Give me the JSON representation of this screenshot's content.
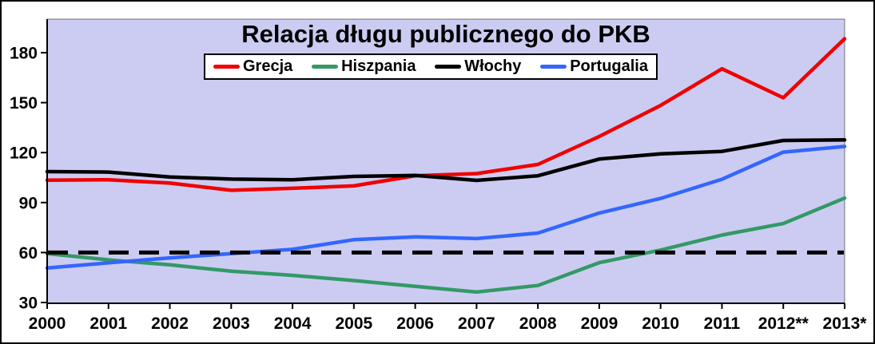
{
  "chart_data": {
    "type": "line",
    "title": "Relacja długu publicznego do PKB",
    "categories": [
      "2000",
      "2001",
      "2002",
      "2003",
      "2004",
      "2005",
      "2006",
      "2007",
      "2008",
      "2009",
      "2010",
      "2011",
      "2012**",
      "2013*"
    ],
    "y_ticks": [
      30,
      60,
      90,
      120,
      150,
      180
    ],
    "ylim": [
      30,
      200
    ],
    "grid": false,
    "legend_position": "top-center",
    "plot_bg_color": "#CCCCF2",
    "plot_border_color": "#707070",
    "axis_color": "#000000",
    "reference_line": {
      "value": 60,
      "style": "dashed",
      "color": "#000000"
    },
    "series": [
      {
        "name": "Grecja",
        "color": "#F00000",
        "values": [
          103.4,
          103.7,
          101.7,
          97.4,
          98.6,
          100.0,
          106.1,
          107.4,
          112.9,
          129.7,
          148.3,
          170.3,
          152.9,
          188.4
        ]
      },
      {
        "name": "Hiszpania",
        "color": "#339966",
        "values": [
          59.4,
          55.6,
          52.6,
          48.8,
          46.3,
          43.2,
          39.7,
          36.3,
          40.2,
          53.9,
          61.5,
          70.5,
          77.4,
          92.7
        ]
      },
      {
        "name": "Włochy",
        "color": "#000000",
        "values": [
          108.6,
          108.3,
          105.4,
          104.1,
          103.7,
          105.7,
          106.3,
          103.3,
          106.1,
          116.1,
          119.3,
          120.7,
          127.3,
          127.6
        ]
      },
      {
        "name": "Portugalia",
        "color": "#3366FF",
        "values": [
          50.7,
          53.8,
          56.8,
          59.4,
          61.9,
          67.7,
          69.4,
          68.4,
          71.7,
          83.7,
          92.5,
          104.0,
          120.3,
          123.7
        ]
      }
    ]
  }
}
